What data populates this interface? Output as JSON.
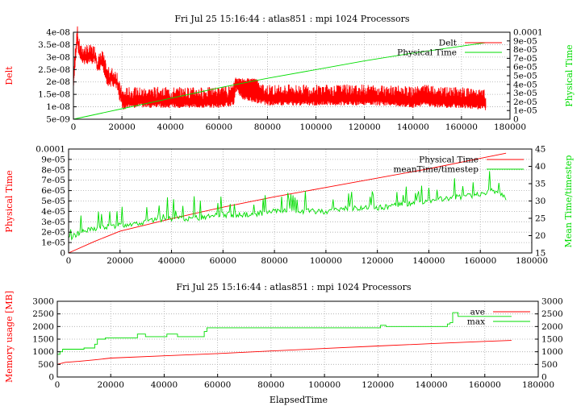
{
  "colors": {
    "red": "#ff0000",
    "green": "#00dd00",
    "grid": "#aaaaaa",
    "axis": "#000000"
  },
  "chart_data": [
    {
      "type": "line",
      "title": "Fri Jul 25 15:16:44 : atlas851 : mpi 1024 Processors",
      "ylabel": "Delt",
      "y2label": "Physical Time",
      "xlim": [
        0,
        180000
      ],
      "ylim": [
        5e-09,
        4e-08
      ],
      "y2lim": [
        0,
        0.0001
      ],
      "xticks": [
        "0",
        "20000",
        "40000",
        "60000",
        "80000",
        "100000",
        "120000",
        "140000",
        "160000",
        "180000"
      ],
      "yticks": [
        "5e-09",
        "1e-08",
        "1.5e-08",
        "2e-08",
        "2.5e-08",
        "3e-08",
        "3.5e-08",
        "4e-08"
      ],
      "y2ticks": [
        "0",
        "1e-05",
        "2e-05",
        "3e-05",
        "4e-05",
        "5e-05",
        "6e-05",
        "7e-05",
        "8e-05",
        "9e-05",
        "0.0001"
      ],
      "grid": true,
      "legend_position": "top-right",
      "series": [
        {
          "name": "Delt",
          "axis": "left",
          "color": "red",
          "x": [
            0,
            1500,
            2000,
            3000,
            4000,
            6000,
            9000,
            10000,
            12000,
            14000,
            16000,
            18000,
            19000,
            20000,
            21000,
            22000,
            30000,
            40000,
            50000,
            60000,
            66000,
            67000,
            70000,
            75000,
            80000,
            90000,
            100000,
            110000,
            120000,
            130000,
            140000,
            145000,
            150000,
            160000,
            170000
          ],
          "y": [
            2e-08,
            3.9e-08,
            3.4e-08,
            3e-08,
            3e-08,
            3e-08,
            3e-08,
            2.6e-08,
            2.8e-08,
            2.1e-08,
            2.1e-08,
            2e-08,
            1.5e-08,
            1.3e-08,
            1.2e-08,
            1.3e-08,
            1.3e-08,
            1.3e-08,
            1.3e-08,
            1.3e-08,
            1.4e-08,
            2e-08,
            1.6e-08,
            1.5e-08,
            1.4e-08,
            1.4e-08,
            1.4e-08,
            1.4e-08,
            1.4e-08,
            1.4e-08,
            1.3e-08,
            1.4e-08,
            1.3e-08,
            1.3e-08,
            1.2e-08
          ]
        },
        {
          "name": "Physical Time",
          "axis": "right",
          "color": "green",
          "x": [
            0,
            10000,
            20000,
            40000,
            60000,
            80000,
            100000,
            120000,
            140000,
            160000,
            170000
          ],
          "y": [
            0.0,
            6e-06,
            1.2e-05,
            2.4e-05,
            3.6e-05,
            4.7e-05,
            5.7e-05,
            6.7e-05,
            7.6e-05,
            8.4e-05,
            8.8e-05
          ]
        }
      ]
    },
    {
      "type": "line",
      "title": "",
      "ylabel": "Physical Time",
      "y2label": "Mean Time/timestep",
      "xlim": [
        0,
        180000
      ],
      "ylim": [
        0,
        0.0001
      ],
      "y2lim": [
        15,
        45
      ],
      "xticks": [
        "0",
        "20000",
        "40000",
        "60000",
        "80000",
        "100000",
        "120000",
        "140000",
        "160000",
        "180000"
      ],
      "yticks": [
        "0",
        "1e-05",
        "2e-05",
        "3e-05",
        "4e-05",
        "5e-05",
        "6e-05",
        "7e-05",
        "8e-05",
        "9e-05",
        "0.0001"
      ],
      "y2ticks": [
        "15",
        "20",
        "25",
        "30",
        "35",
        "40",
        "45"
      ],
      "grid": true,
      "legend_position": "top-right",
      "series": [
        {
          "name": "Physical Time",
          "axis": "left",
          "color": "red",
          "x": [
            0,
            10000,
            20000,
            40000,
            60000,
            80000,
            100000,
            120000,
            140000,
            160000,
            170000
          ],
          "y": [
            0.0,
            1.1e-05,
            2.1e-05,
            3.3e-05,
            4.4e-05,
            5.4e-05,
            6.3e-05,
            7.2e-05,
            8.1e-05,
            9.1e-05,
            9.6e-05
          ]
        },
        {
          "name": "meanTime/timestep",
          "axis": "right",
          "color": "green",
          "x": [
            0,
            2000,
            5000,
            10000,
            20000,
            30000,
            40000,
            50000,
            60000,
            70000,
            80000,
            90000,
            100000,
            110000,
            120000,
            130000,
            140000,
            150000,
            160000,
            165000,
            170000
          ],
          "y": [
            19,
            20,
            21,
            22,
            23,
            24,
            25,
            25,
            26,
            26,
            27,
            27,
            27,
            28,
            28,
            29,
            30,
            31,
            32,
            33,
            31
          ]
        }
      ]
    },
    {
      "type": "line",
      "title": "Fri Jul 25 15:16:44 : atlas851 : mpi 1024 Processors",
      "xlabel": "ElapsedTime",
      "ylabel": "Memory usage [MB]",
      "xlim": [
        0,
        180000
      ],
      "ylim": [
        0,
        3000
      ],
      "y2lim": [
        0,
        3000
      ],
      "xticks": [
        "0",
        "20000",
        "40000",
        "60000",
        "80000",
        "100000",
        "120000",
        "140000",
        "160000",
        "180000"
      ],
      "yticks": [
        "0",
        "500",
        "1000",
        "1500",
        "2000",
        "2500",
        "3000"
      ],
      "y2ticks": [
        "0",
        "500",
        "1000",
        "1500",
        "2000",
        "2500",
        "3000"
      ],
      "grid": true,
      "legend_position": "top-right",
      "series": [
        {
          "name": "ave",
          "axis": "left",
          "color": "red",
          "x": [
            0,
            3000,
            8000,
            14000,
            20000,
            40000,
            60000,
            80000,
            100000,
            120000,
            140000,
            160000,
            170000
          ],
          "y": [
            500,
            580,
            620,
            680,
            750,
            840,
            930,
            1030,
            1130,
            1230,
            1320,
            1410,
            1450
          ]
        },
        {
          "name": "max",
          "axis": "left",
          "color": "green",
          "x": [
            0,
            1000,
            2000,
            3000,
            10000,
            14000,
            15000,
            17000,
            18000,
            29000,
            30000,
            32000,
            33000,
            40000,
            41000,
            45000,
            52000,
            55000,
            56000,
            60000,
            100000,
            121000,
            123000,
            140000,
            146000,
            147000,
            148000,
            150000,
            170000
          ],
          "y": [
            900,
            1000,
            1100,
            1100,
            1150,
            1300,
            1500,
            1500,
            1550,
            1550,
            1700,
            1700,
            1600,
            1600,
            1700,
            1600,
            1600,
            1800,
            1950,
            1950,
            1950,
            2050,
            2000,
            2000,
            2100,
            2150,
            2550,
            2400,
            2400
          ]
        }
      ]
    }
  ]
}
